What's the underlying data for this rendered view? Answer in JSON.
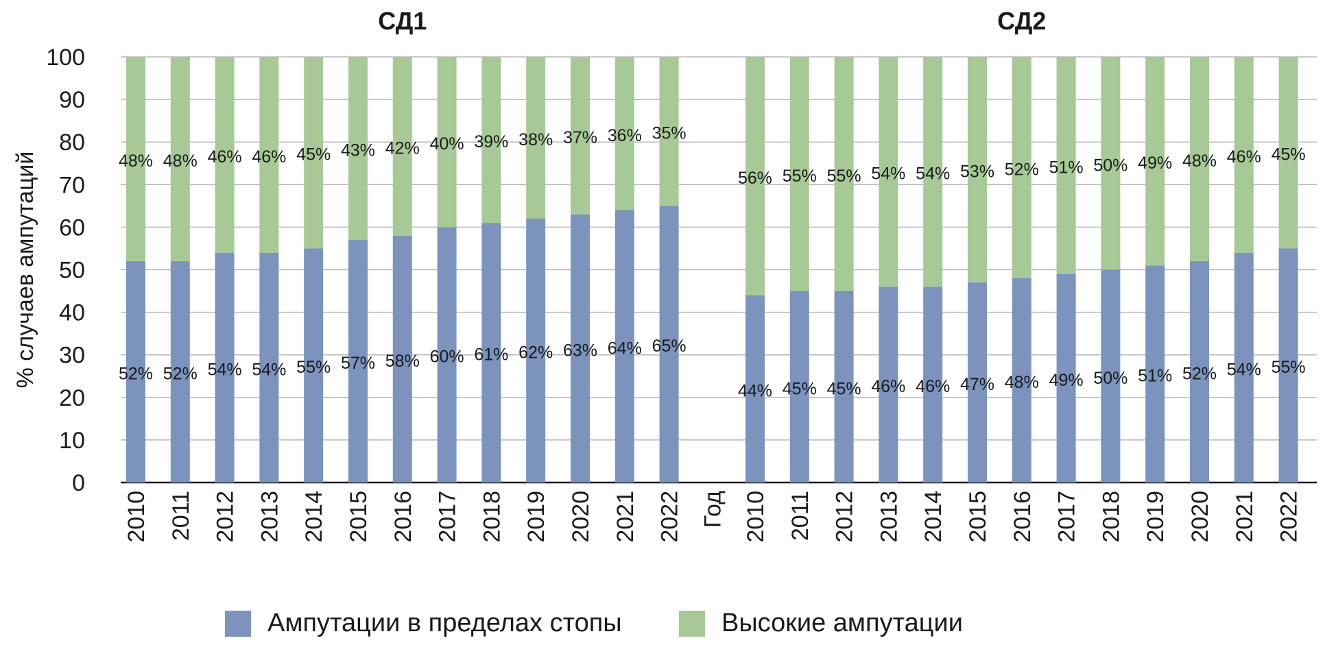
{
  "colors": {
    "foot": "#7b93bd",
    "high": "#a6c995",
    "grid": "#b8b8b8",
    "axis": "#1a1a1a",
    "text": "#1a1a1a"
  },
  "legend": {
    "foot_label": "Ампутации в пределах стопы",
    "high_label": "Высокие ампутации"
  },
  "chart_data": {
    "type": "bar",
    "stacked": true,
    "percent": true,
    "ylabel": "% случаев ампутаций",
    "ylim": [
      0,
      100
    ],
    "yticks": [
      "0",
      "10",
      "20",
      "30",
      "40",
      "50",
      "60",
      "70",
      "80",
      "90",
      "100"
    ],
    "separator_label": "Год",
    "grid": true,
    "legend_position": "bottom",
    "panels": [
      {
        "title": "СД1",
        "categories": [
          "2010",
          "2011",
          "2012",
          "2013",
          "2014",
          "2015",
          "2016",
          "2017",
          "2018",
          "2019",
          "2020",
          "2021",
          "2022"
        ],
        "series": [
          {
            "name": "Ампутации в пределах стопы",
            "values": [
              52,
              52,
              54,
              54,
              55,
              57,
              58,
              60,
              61,
              62,
              63,
              64,
              65
            ],
            "labels": [
              "52%",
              "52%",
              "54%",
              "54%",
              "55%",
              "57%",
              "58%",
              "60%",
              "61%",
              "62%",
              "63%",
              "64%",
              "65%"
            ]
          },
          {
            "name": "Высокие ампутации",
            "values": [
              48,
              48,
              46,
              46,
              45,
              43,
              42,
              40,
              39,
              38,
              37,
              36,
              35
            ],
            "labels": [
              "48%",
              "48%",
              "46%",
              "46%",
              "45%",
              "43%",
              "42%",
              "40%",
              "39%",
              "38%",
              "37%",
              "36%",
              "35%"
            ]
          }
        ]
      },
      {
        "title": "СД2",
        "categories": [
          "2010",
          "2011",
          "2012",
          "2013",
          "2014",
          "2015",
          "2016",
          "2017",
          "2018",
          "2019",
          "2020",
          "2021",
          "2022"
        ],
        "series": [
          {
            "name": "Ампутации в пределах стопы",
            "values": [
              44,
              45,
              45,
              46,
              46,
              47,
              48,
              49,
              50,
              51,
              52,
              54,
              55
            ],
            "labels": [
              "44%",
              "45%",
              "45%",
              "46%",
              "46%",
              "47%",
              "48%",
              "49%",
              "50%",
              "51%",
              "52%",
              "54%",
              "55%"
            ]
          },
          {
            "name": "Высокие ампутации",
            "values": [
              56,
              55,
              55,
              54,
              54,
              53,
              52,
              51,
              50,
              49,
              48,
              46,
              45
            ],
            "labels": [
              "56%",
              "55%",
              "55%",
              "54%",
              "54%",
              "53%",
              "52%",
              "51%",
              "50%",
              "49%",
              "48%",
              "46%",
              "45%"
            ]
          }
        ]
      }
    ]
  }
}
